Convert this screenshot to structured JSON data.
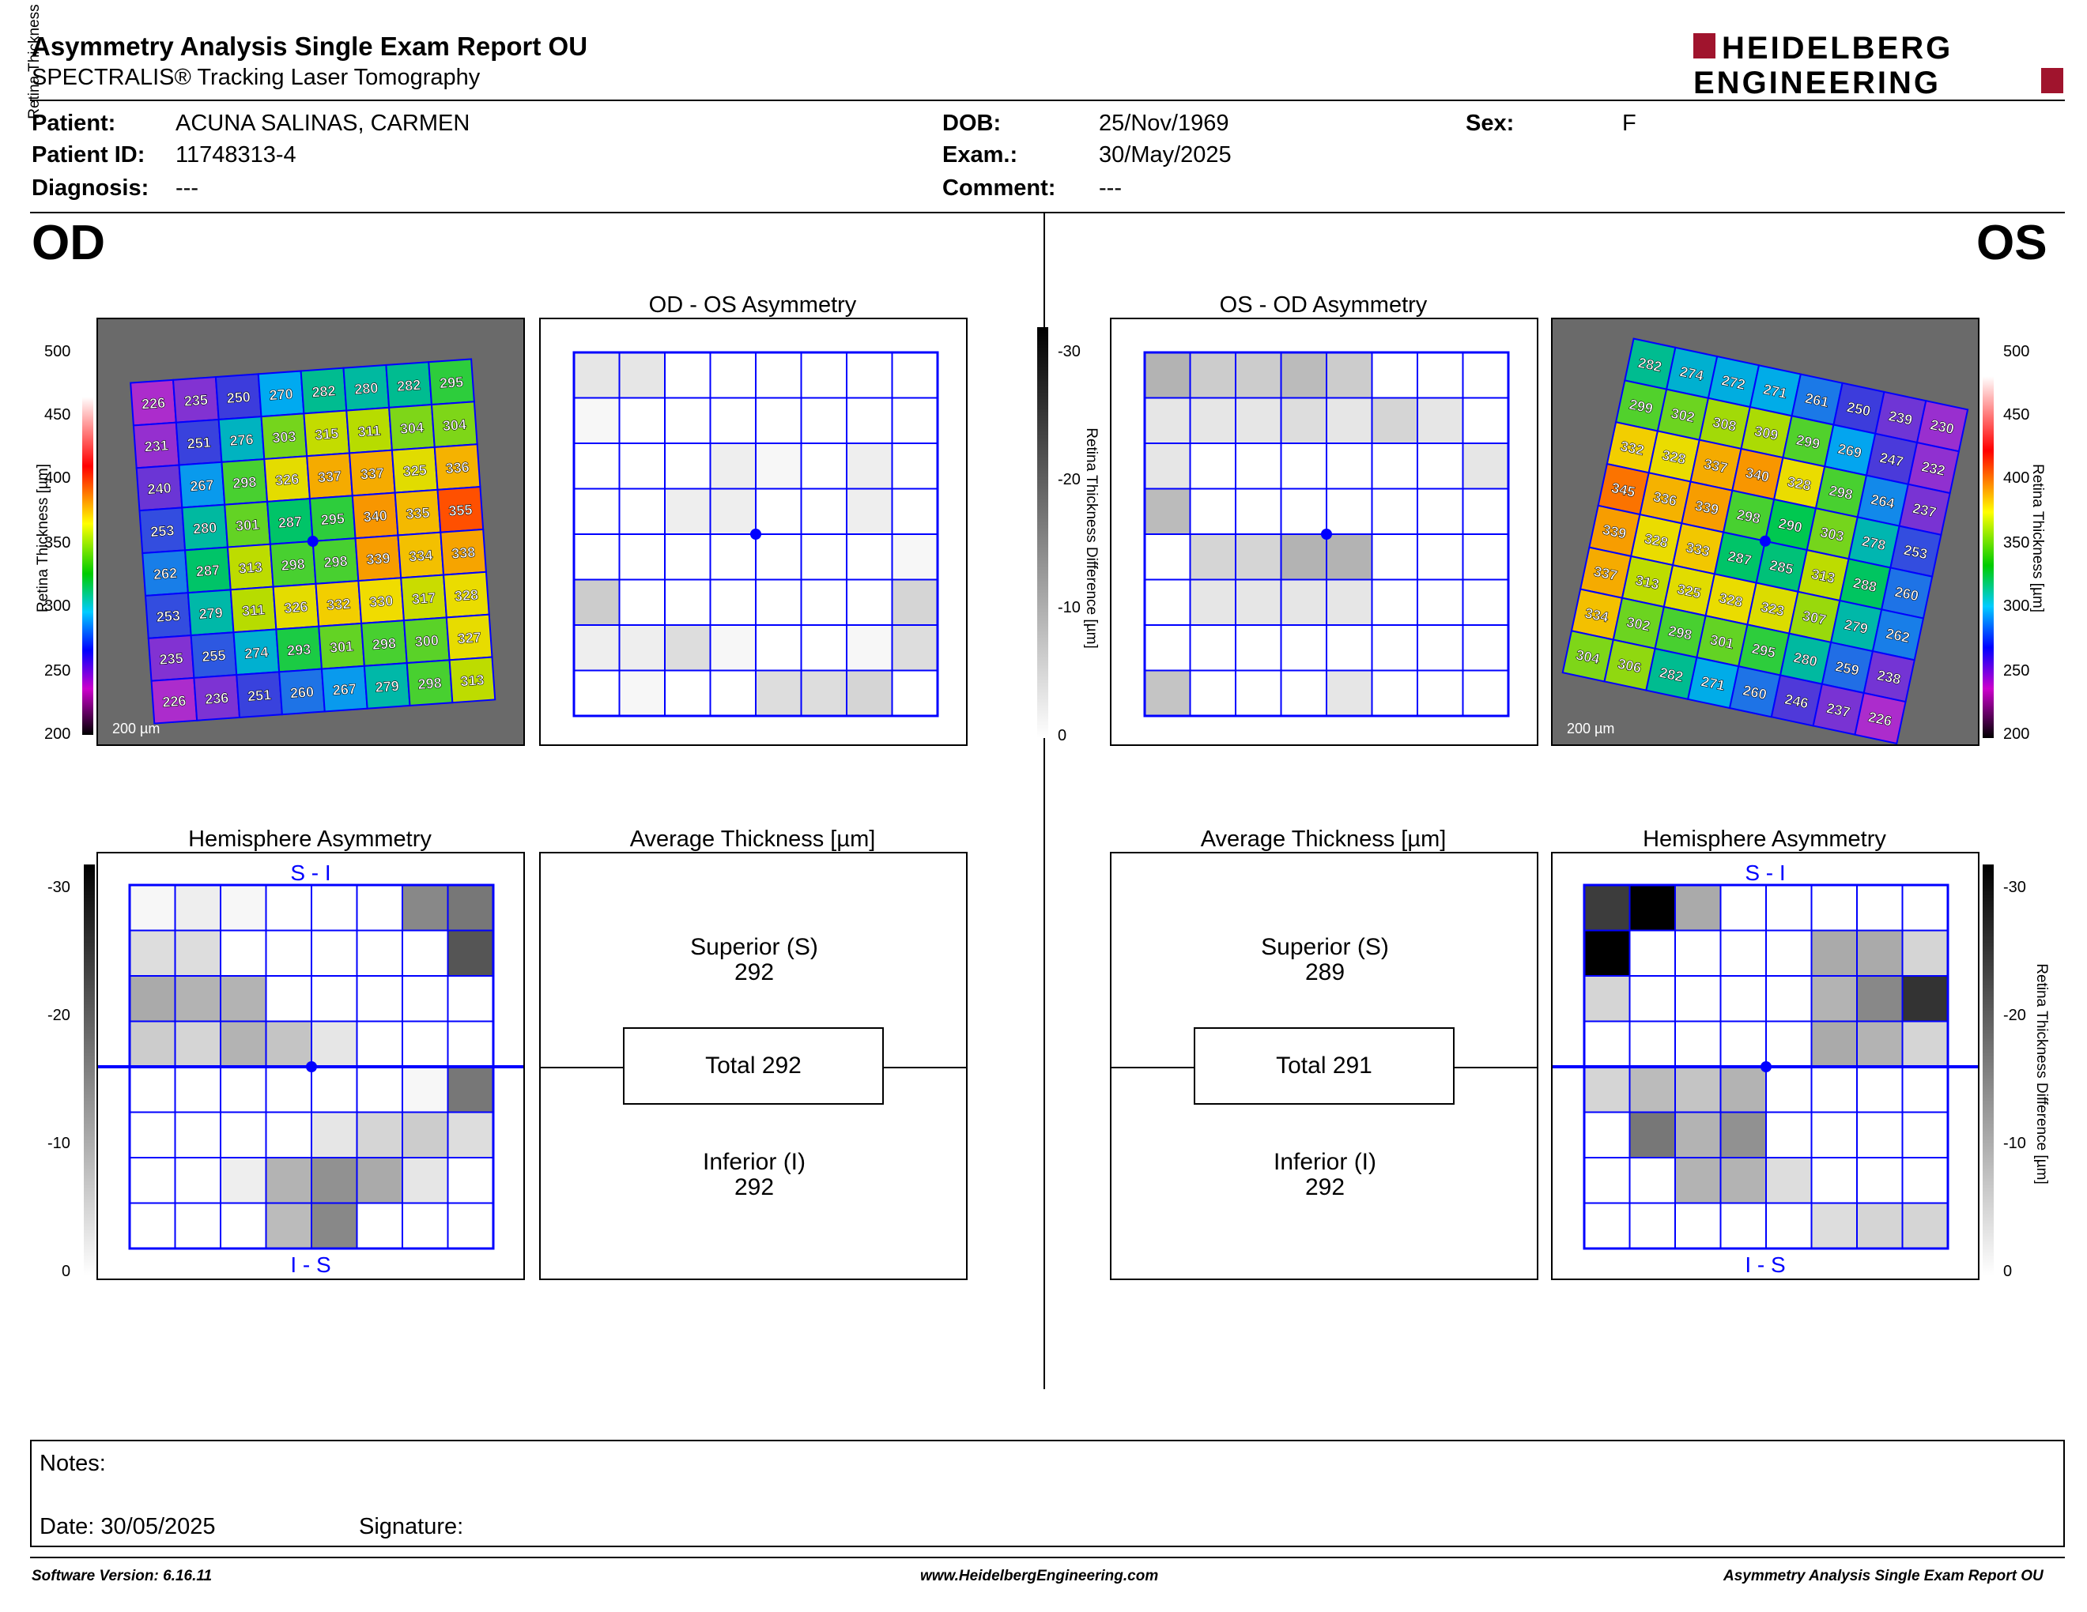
{
  "header": {
    "title": "Asymmetry Analysis Single Exam Report OU",
    "subtitle": "SPECTRALIS® Tracking Laser Tomography",
    "logo_line1": "HEIDELBERG",
    "logo_line2": "ENGINEERING"
  },
  "patient": {
    "name_label": "Patient:",
    "name": "ACUNA SALINAS, CARMEN",
    "id_label": "Patient ID:",
    "id": "11748313-4",
    "diagnosis_label": "Diagnosis:",
    "diagnosis": "---",
    "dob_label": "DOB:",
    "dob": "25/Nov/1969",
    "exam_label": "Exam.:",
    "exam": "30/May/2025",
    "comment_label": "Comment:",
    "comment": "---",
    "sex_label": "Sex:",
    "sex": "F"
  },
  "od": {
    "eye": "OD",
    "asym_title": "OD - OS Asymmetry",
    "hemi_title": "Hemisphere Asymmetry",
    "avg_title": "Average Thickness [µm]",
    "superior_label": "Superior (S)",
    "superior": "292",
    "total": "Total 292",
    "inferior_label": "Inferior (I)",
    "inferior": "292",
    "scale": "200 µm",
    "top_label": "S - I",
    "bottom_label": "I - S",
    "thickness_grid": [
      [
        226,
        235,
        250,
        270,
        282,
        280,
        282,
        295
      ],
      [
        231,
        251,
        276,
        303,
        315,
        311,
        304,
        304
      ],
      [
        240,
        267,
        298,
        326,
        337,
        337,
        325,
        336
      ],
      [
        253,
        280,
        301,
        287,
        295,
        340,
        335,
        355
      ],
      [
        262,
        287,
        313,
        298,
        298,
        339,
        334,
        338
      ],
      [
        253,
        279,
        311,
        326,
        332,
        330,
        317,
        328
      ],
      [
        235,
        255,
        274,
        293,
        301,
        298,
        300,
        327
      ],
      [
        226,
        236,
        251,
        260,
        267,
        279,
        298,
        313
      ]
    ],
    "asym_grid": [
      [
        3,
        3,
        0,
        0,
        0,
        0,
        0,
        0
      ],
      [
        1,
        0,
        0,
        0,
        0,
        0,
        0,
        0
      ],
      [
        0,
        0,
        0,
        2,
        1,
        0,
        2,
        0
      ],
      [
        0,
        0,
        2,
        2,
        0,
        0,
        2,
        0
      ],
      [
        0,
        0,
        0,
        0,
        0,
        0,
        0,
        1
      ],
      [
        6,
        0,
        0,
        0,
        0,
        0,
        0,
        5
      ],
      [
        2,
        2,
        4,
        1,
        0,
        0,
        1,
        4
      ],
      [
        0,
        1,
        0,
        0,
        4,
        4,
        5,
        0
      ]
    ],
    "hemi_grid": [
      [
        1,
        2,
        1,
        0,
        0,
        0,
        14,
        16
      ],
      [
        4,
        4,
        0,
        0,
        0,
        0,
        0,
        20
      ],
      [
        10,
        9,
        9,
        0,
        0,
        0,
        0,
        0
      ],
      [
        6,
        5,
        9,
        7,
        3,
        0,
        0,
        0
      ],
      [
        0,
        0,
        0,
        0,
        0,
        0,
        1,
        16
      ],
      [
        0,
        0,
        0,
        0,
        3,
        5,
        6,
        4
      ],
      [
        0,
        0,
        2,
        9,
        13,
        10,
        3,
        0
      ],
      [
        0,
        0,
        0,
        8,
        14,
        0,
        0,
        0
      ]
    ]
  },
  "os": {
    "eye": "OS",
    "asym_title": "OS - OD Asymmetry",
    "hemi_title": "Hemisphere Asymmetry",
    "avg_title": "Average Thickness [µm]",
    "superior_label": "Superior (S)",
    "superior": "289",
    "total": "Total 291",
    "inferior_label": "Inferior (I)",
    "inferior": "292",
    "scale": "200 µm",
    "top_label": "S - I",
    "bottom_label": "I - S",
    "thickness_grid": [
      [
        282,
        274,
        272,
        271,
        261,
        250,
        239,
        230
      ],
      [
        299,
        302,
        308,
        309,
        299,
        269,
        247,
        232
      ],
      [
        332,
        328,
        337,
        340,
        328,
        298,
        264,
        237
      ],
      [
        345,
        336,
        339,
        298,
        290,
        303,
        278,
        253
      ],
      [
        339,
        328,
        333,
        287,
        285,
        313,
        288,
        260
      ],
      [
        337,
        313,
        325,
        328,
        323,
        307,
        279,
        262
      ],
      [
        334,
        302,
        298,
        301,
        295,
        280,
        259,
        238
      ],
      [
        304,
        306,
        282,
        271,
        260,
        246,
        237,
        226
      ]
    ],
    "asym_grid": [
      [
        9,
        6,
        6,
        8,
        6,
        0,
        0,
        0
      ],
      [
        3,
        3,
        3,
        4,
        3,
        5,
        3,
        0
      ],
      [
        3,
        0,
        0,
        0,
        0,
        0,
        0,
        3
      ],
      [
        8,
        0,
        0,
        0,
        0,
        0,
        0,
        0
      ],
      [
        0,
        5,
        5,
        9,
        9,
        0,
        0,
        0
      ],
      [
        0,
        3,
        3,
        3,
        3,
        0,
        0,
        0
      ],
      [
        0,
        0,
        0,
        0,
        0,
        0,
        0,
        0
      ],
      [
        7,
        0,
        0,
        0,
        3,
        0,
        0,
        0
      ]
    ],
    "hemi_grid": [
      [
        23,
        30,
        10,
        0,
        0,
        0,
        0,
        0
      ],
      [
        30,
        0,
        0,
        0,
        0,
        10,
        10,
        5
      ],
      [
        5,
        0,
        0,
        0,
        0,
        9,
        14,
        24
      ],
      [
        0,
        0,
        0,
        0,
        0,
        10,
        9,
        5
      ],
      [
        5,
        8,
        7,
        9,
        0,
        0,
        0,
        0
      ],
      [
        0,
        16,
        9,
        13,
        0,
        0,
        0,
        0
      ],
      [
        0,
        0,
        9,
        9,
        4,
        0,
        0,
        0
      ],
      [
        0,
        0,
        0,
        0,
        0,
        4,
        5,
        5
      ]
    ]
  },
  "colorbar": {
    "thickness_ticks": [
      "500",
      "450",
      "400",
      "350",
      "300",
      "250",
      "200"
    ],
    "thickness_label": "Retina Thickness [µm]",
    "diff_ticks": [
      "-30",
      "-20",
      "-10",
      "0"
    ],
    "diff_label": "Retina Thickness Difference [µm]"
  },
  "notes": {
    "notes_label": "Notes:",
    "date": "Date: 30/05/2025",
    "signature": "Signature:"
  },
  "footer": {
    "software": "Software Version: 6.16.11",
    "website": "www.HeidelbergEngineering.com",
    "report": "Asymmetry Analysis Single Exam Report OU"
  },
  "colors": {
    "grid_blue": "#0000ff",
    "logo_red": "#a0142d"
  }
}
